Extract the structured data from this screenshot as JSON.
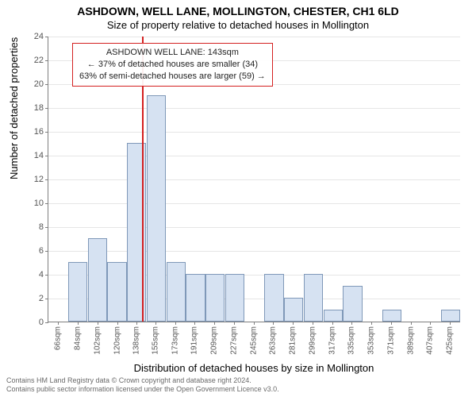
{
  "title_line1": "ASHDOWN, WELL LANE, MOLLINGTON, CHESTER, CH1 6LD",
  "title_line2": "Size of property relative to detached houses in Mollington",
  "ylabel": "Number of detached properties",
  "xlabel": "Distribution of detached houses by size in Mollington",
  "credits_line1": "Contains HM Land Registry data © Crown copyright and database right 2024.",
  "credits_line2": "Contains public sector information licensed under the Open Government Licence v3.0.",
  "chart": {
    "type": "histogram",
    "background_color": "#ffffff",
    "grid_color": "#e6e6e6",
    "axis_color": "#7f7f7f",
    "bar_fill": "#d6e2f2",
    "bar_border": "#7f98b8",
    "refline_color": "#d42020",
    "annot_border": "#d42020",
    "ylim": [
      0,
      24
    ],
    "ytick_step": 2,
    "yticks": [
      0,
      2,
      4,
      6,
      8,
      10,
      12,
      14,
      16,
      18,
      20,
      22,
      24
    ],
    "x_start": 57,
    "x_bin_width": 18,
    "xtick_labels": [
      "66sqm",
      "84sqm",
      "102sqm",
      "120sqm",
      "138sqm",
      "155sqm",
      "173sqm",
      "191sqm",
      "209sqm",
      "227sqm",
      "245sqm",
      "263sqm",
      "281sqm",
      "299sqm",
      "317sqm",
      "335sqm",
      "353sqm",
      "371sqm",
      "389sqm",
      "407sqm",
      "425sqm"
    ],
    "xtick_values": [
      66,
      84,
      102,
      120,
      138,
      155,
      173,
      191,
      209,
      227,
      245,
      263,
      281,
      299,
      317,
      335,
      353,
      371,
      389,
      407,
      425
    ],
    "values": [
      0,
      5,
      7,
      5,
      15,
      19,
      5,
      4,
      4,
      4,
      0,
      4,
      2,
      4,
      1,
      3,
      0,
      1,
      0,
      0,
      1
    ],
    "reference_value": 143,
    "annot_lines": [
      "ASHDOWN WELL LANE: 143sqm",
      "← 37% of detached houses are smaller (34)",
      "63% of semi-detached houses are larger (59) →"
    ],
    "title_fontsize": 14,
    "subtitle_fontsize": 13,
    "label_fontsize": 13,
    "tick_fontsize": 11,
    "xtick_fontsize": 10,
    "annot_fontsize": 11
  }
}
